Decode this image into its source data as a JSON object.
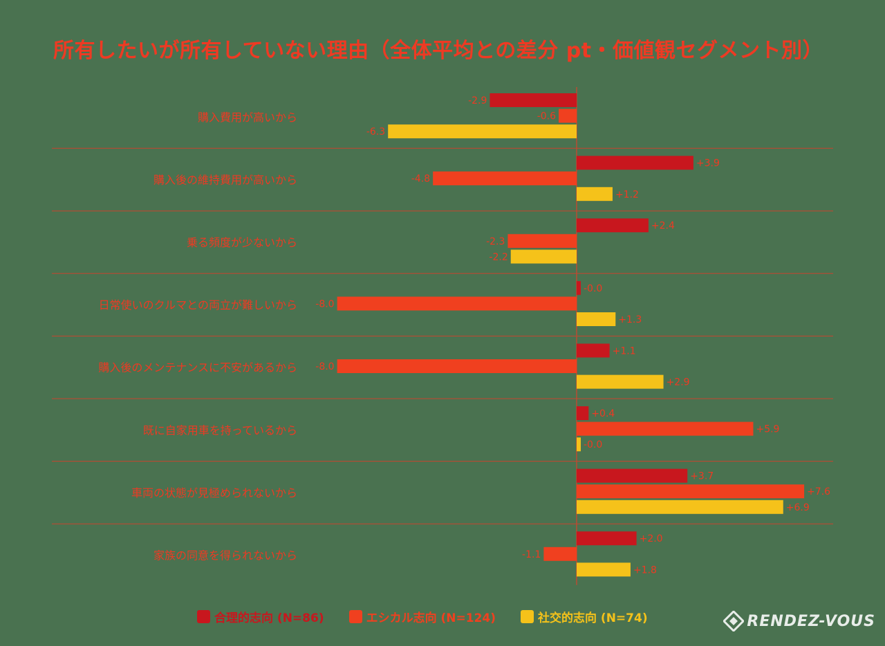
{
  "title": "所有したいが所有していない理由（全体平均との差分 pt・価値観セグメント別）",
  "colors": {
    "background": "#4a7250",
    "title": "#ee3a23",
    "label": "#ee3a23",
    "divider": "#c8452e",
    "axis": "#ee3a23"
  },
  "legend": {
    "items": [
      {
        "label": "合理的志向 (N=86)",
        "color": "#c8171e"
      },
      {
        "label": "エシカル志向 (N=124)",
        "color": "#f0401f"
      },
      {
        "label": "社交的志向 (N=74)",
        "color": "#f5c21a"
      }
    ]
  },
  "brand": {
    "name": "RENDEZ-VOUS",
    "icon": "rendez-vous-logo-icon"
  },
  "chart_data": {
    "type": "bar",
    "orientation": "horizontal",
    "categories": [
      "購入費用が高いから",
      "購入後の維持費用が高いから",
      "乗る頻度が少ないから",
      "日常使いのクルマとの両立が難しいから",
      "購入後のメンテナンスに不安があるから",
      "既に自家用車を持っているから",
      "車両の状態が見極められないから",
      "家族の同意を得られないから"
    ],
    "series": [
      {
        "name": "合理的志向 (N=86)",
        "color": "#c8171e",
        "values": [
          -2.9,
          3.9,
          2.4,
          -0.0,
          1.1,
          0.4,
          3.7,
          2.0
        ],
        "labels": [
          "-2.9",
          "+3.9",
          "+2.4",
          "-0.0",
          "+1.1",
          "+0.4",
          "+3.7",
          "+2.0"
        ]
      },
      {
        "name": "エシカル志向 (N=124)",
        "color": "#f0401f",
        "values": [
          -0.6,
          -4.8,
          -2.3,
          -8.0,
          -8.0,
          5.9,
          7.6,
          -1.1
        ],
        "labels": [
          "-0.6",
          "-4.8",
          "-2.3",
          "-8.0",
          "-8.0",
          "+5.9",
          "+7.6",
          "-1.1"
        ]
      },
      {
        "name": "社交的志向 (N=74)",
        "color": "#f5c21a",
        "values": [
          -6.3,
          1.2,
          -2.2,
          1.3,
          2.9,
          -0.0,
          6.9,
          1.8
        ],
        "labels": [
          "-6.3",
          "+1.2",
          "-2.2",
          "+1.3",
          "+2.9",
          "-0.0",
          "+6.9",
          "+1.8"
        ]
      }
    ],
    "unit": "pt",
    "xlim": [
      -8.0,
      8.0
    ],
    "grid": false
  }
}
